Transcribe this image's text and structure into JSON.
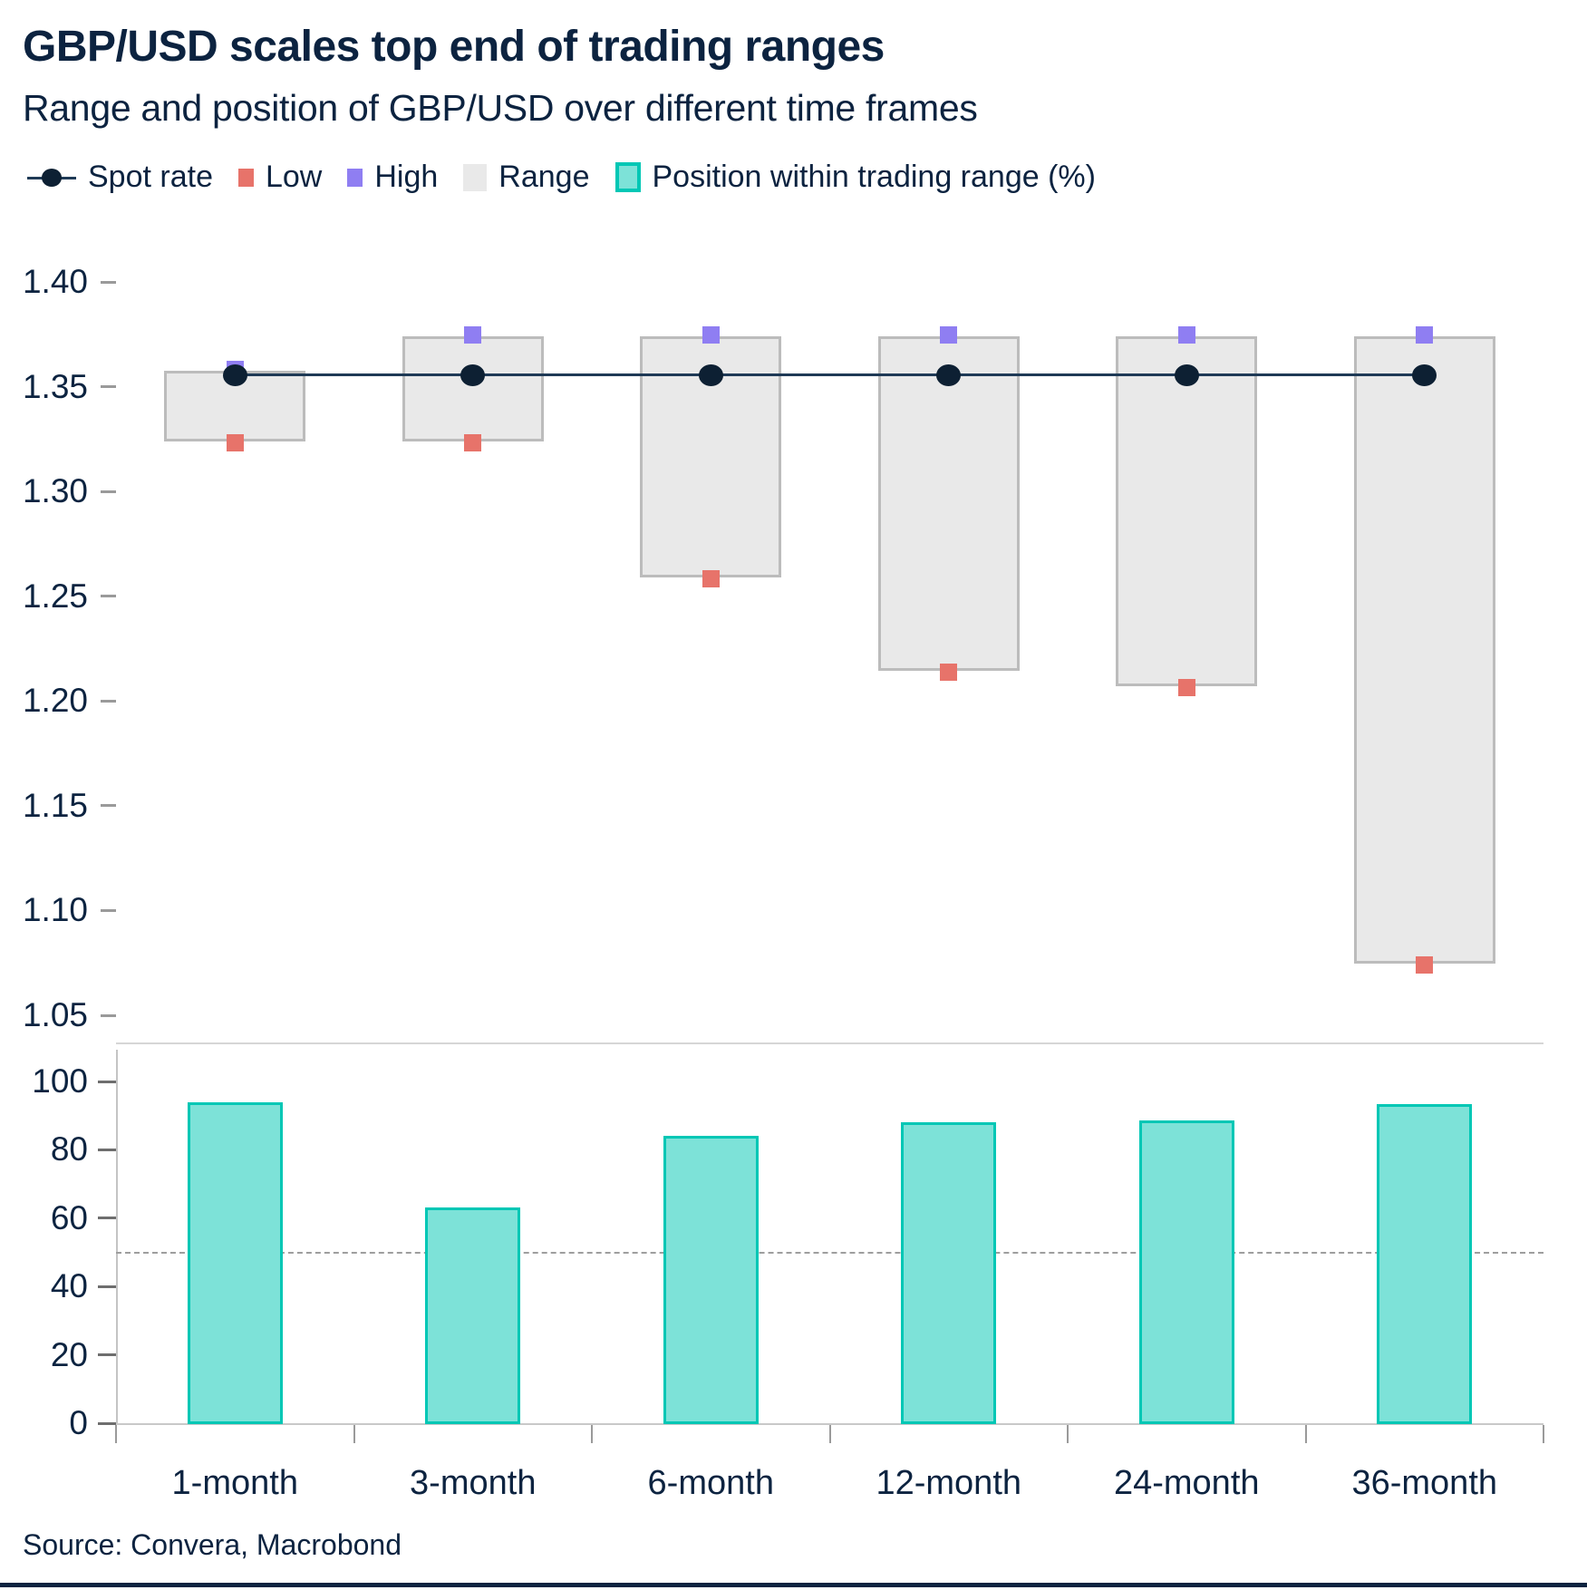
{
  "header": {
    "title": "GBP/USD scales top end of trading ranges",
    "subtitle": "Range and position of GBP/USD over different time frames"
  },
  "source": "Source: Convera, Macrobond",
  "legend": [
    {
      "label": "Spot rate",
      "marker": "spot-line-dot"
    },
    {
      "label": "Low",
      "marker": "square",
      "color": "#e7736a"
    },
    {
      "label": "High",
      "marker": "square",
      "color": "#8f7ef2"
    },
    {
      "label": "Range",
      "marker": "square",
      "color": "#e9e9e9"
    },
    {
      "label": "Position within trading range (%)",
      "marker": "outlined-square",
      "color": "#7de2d8",
      "border": "#00c7b5"
    }
  ],
  "colors": {
    "navy_text": "#0c2340",
    "spot_dot": "#0d2033",
    "spot_line": "#1f3a56",
    "low": "#e7736a",
    "high": "#8f7ef2",
    "range_fill": "#e9e9e9",
    "range_border": "#bcbcbc",
    "bar_fill": "#7de2d8",
    "bar_border": "#00c7b5",
    "grid_light": "#d6d6d6",
    "baseline_gray": "#c9c9c9",
    "axisline_gray": "#c4c4c4",
    "tick_gray": "#9a9a9a",
    "tick_dark": "#6e6e6e",
    "dashed_line": "#9e9e9e"
  },
  "chart_data": [
    {
      "type": "range",
      "panel": "top",
      "description": "Trading range boxes for GBP/USD with spot rate, high and low over each time frame",
      "categories": [
        "1-month",
        "3-month",
        "6-month",
        "12-month",
        "24-month",
        "36-month"
      ],
      "series": [
        {
          "name": "Spot rate",
          "values": [
            1.3555,
            1.3555,
            1.3555,
            1.3555,
            1.3555,
            1.3555
          ]
        },
        {
          "name": "High",
          "values": [
            1.3575,
            1.374,
            1.374,
            1.374,
            1.374,
            1.374
          ]
        },
        {
          "name": "Low",
          "values": [
            1.324,
            1.324,
            1.259,
            1.2145,
            1.207,
            1.0745
          ]
        }
      ],
      "ylim": [
        1.05,
        1.4
      ],
      "yticks": [
        {
          "value": 1.4,
          "label": "1.40"
        },
        {
          "value": 1.35,
          "label": "1.35"
        },
        {
          "value": 1.3,
          "label": "1.30"
        },
        {
          "value": 1.25,
          "label": "1.25"
        },
        {
          "value": 1.2,
          "label": "1.20"
        },
        {
          "value": 1.15,
          "label": "1.15"
        },
        {
          "value": 1.1,
          "label": "1.10"
        },
        {
          "value": 1.05,
          "label": "1.05"
        }
      ],
      "grid": false,
      "legend_position": "top"
    },
    {
      "type": "bar",
      "panel": "bottom",
      "description": "Position within trading range (%)",
      "categories": [
        "1-month",
        "3-month",
        "6-month",
        "12-month",
        "24-month",
        "36-month"
      ],
      "values": [
        94,
        63,
        84,
        88,
        88.5,
        93.5
      ],
      "ylabel": "Position within trading range (%)",
      "ylim": [
        0,
        110
      ],
      "yticks": [
        0,
        20,
        40,
        60,
        80,
        100
      ],
      "refline": 50,
      "grid": false
    }
  ]
}
